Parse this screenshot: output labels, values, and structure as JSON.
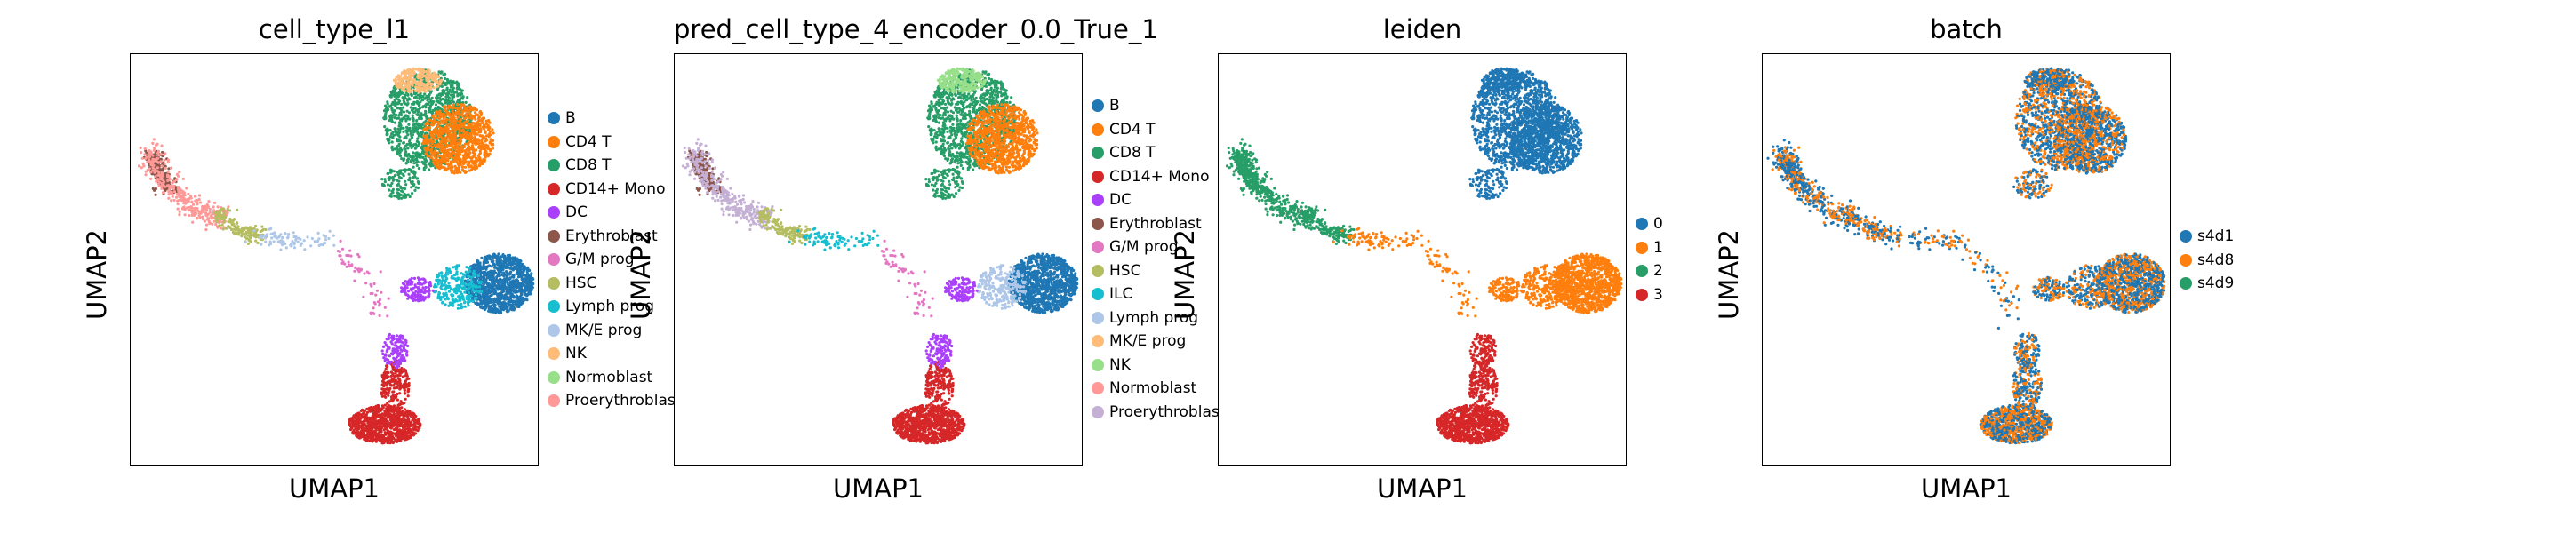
{
  "chart_data": [
    {
      "type": "scatter",
      "title": "cell_type_l1",
      "xlabel": "UMAP1",
      "ylabel": "UMAP2",
      "grid": false,
      "legend_position": "right",
      "legend": [
        {
          "label": "B",
          "color": "#1f77b4"
        },
        {
          "label": "CD4 T",
          "color": "#ff7f0e"
        },
        {
          "label": "CD8 T",
          "color": "#279e68"
        },
        {
          "label": "CD14+ Mono",
          "color": "#d62728"
        },
        {
          "label": "DC",
          "color": "#aa40fc"
        },
        {
          "label": "Erythroblast",
          "color": "#8c564b"
        },
        {
          "label": "G/M prog",
          "color": "#e377c2"
        },
        {
          "label": "HSC",
          "color": "#b5bd61"
        },
        {
          "label": "Lymph prog",
          "color": "#17becf"
        },
        {
          "label": "MK/E prog",
          "color": "#aec7e8"
        },
        {
          "label": "NK",
          "color": "#ffbb78"
        },
        {
          "label": "Normoblast",
          "color": "#98df8a"
        },
        {
          "label": "Proerythroblast",
          "color": "#ff9896"
        }
      ]
    },
    {
      "type": "scatter",
      "title": "pred_cell_type_4_encoder_0.0_True_1",
      "xlabel": "UMAP1",
      "ylabel": "UMAP2",
      "grid": false,
      "legend_position": "right",
      "legend": [
        {
          "label": "B",
          "color": "#1f77b4"
        },
        {
          "label": "CD4 T",
          "color": "#ff7f0e"
        },
        {
          "label": "CD8 T",
          "color": "#279e68"
        },
        {
          "label": "CD14+ Mono",
          "color": "#d62728"
        },
        {
          "label": "DC",
          "color": "#aa40fc"
        },
        {
          "label": "Erythroblast",
          "color": "#8c564b"
        },
        {
          "label": "G/M prog",
          "color": "#e377c2"
        },
        {
          "label": "HSC",
          "color": "#b5bd61"
        },
        {
          "label": "ILC",
          "color": "#17becf"
        },
        {
          "label": "Lymph prog",
          "color": "#aec7e8"
        },
        {
          "label": "MK/E prog",
          "color": "#ffbb78"
        },
        {
          "label": "NK",
          "color": "#98df8a"
        },
        {
          "label": "Normoblast",
          "color": "#ff9896"
        },
        {
          "label": "Proerythroblast",
          "color": "#c5b0d5"
        }
      ]
    },
    {
      "type": "scatter",
      "title": "leiden",
      "xlabel": "UMAP1",
      "ylabel": "UMAP2",
      "grid": false,
      "legend_position": "right",
      "legend": [
        {
          "label": "0",
          "color": "#1f77b4"
        },
        {
          "label": "1",
          "color": "#ff7f0e"
        },
        {
          "label": "2",
          "color": "#279e68"
        },
        {
          "label": "3",
          "color": "#d62728"
        }
      ]
    },
    {
      "type": "scatter",
      "title": "batch",
      "xlabel": "UMAP1",
      "ylabel": "UMAP2",
      "grid": false,
      "legend_position": "right",
      "legend": [
        {
          "label": "s4d1",
          "color": "#1f77b4"
        },
        {
          "label": "s4d8",
          "color": "#ff7f0e"
        },
        {
          "label": "s4d9",
          "color": "#279e68"
        }
      ]
    }
  ]
}
